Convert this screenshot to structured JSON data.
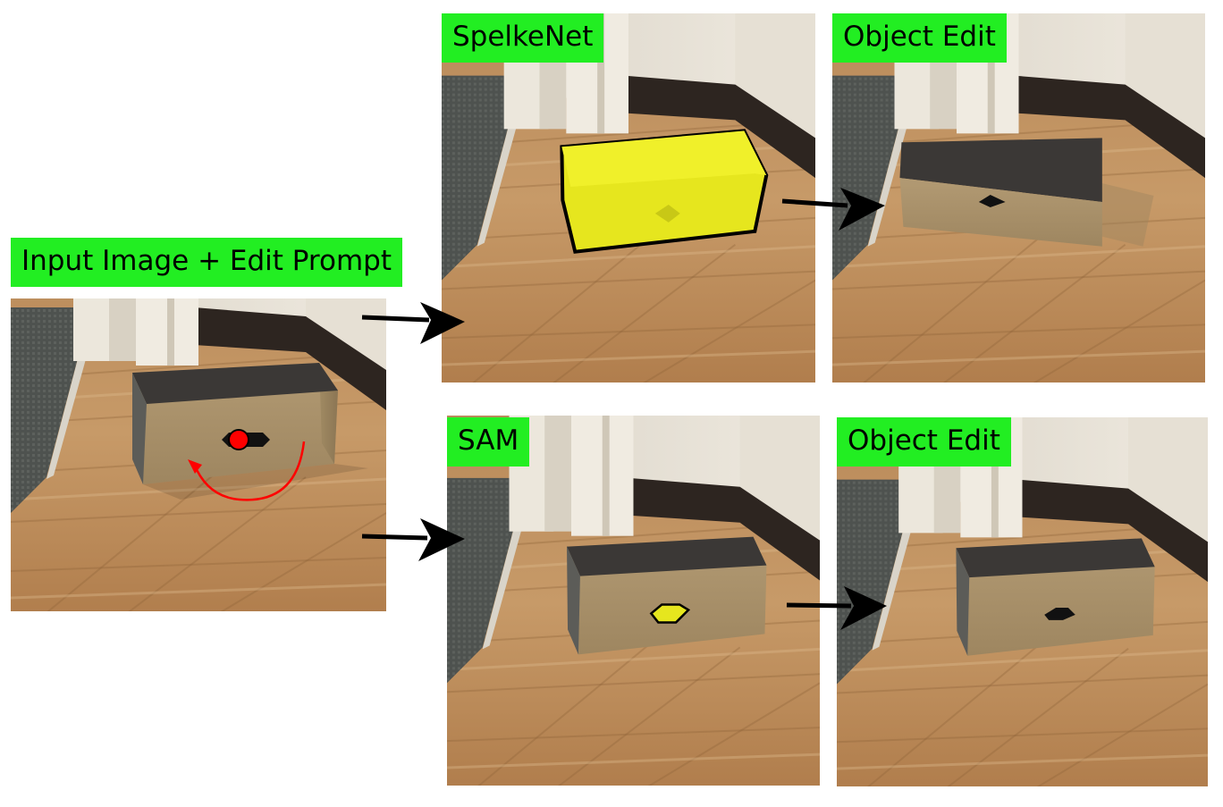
{
  "panels": {
    "input": {
      "label": "Input Image + Edit Prompt"
    },
    "spelkenet": {
      "label": "SpelkeNet"
    },
    "spelkenet_edit": {
      "label": "Object Edit"
    },
    "sam": {
      "label": "SAM"
    },
    "sam_edit": {
      "label": "Object Edit"
    }
  },
  "colors": {
    "label_bg": "#22ee22",
    "segment_highlight": "#e6e61e",
    "edit_prompt": "#ff0000",
    "arrow": "#000000"
  }
}
